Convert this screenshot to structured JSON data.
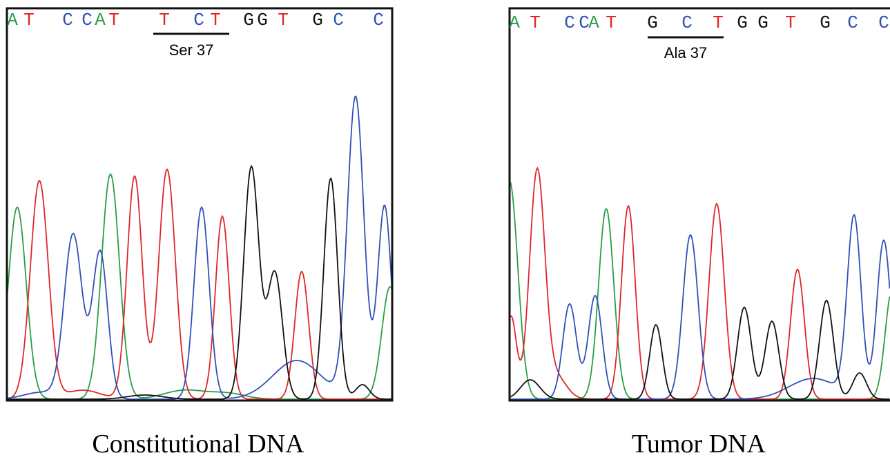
{
  "panels": [
    {
      "bases": [
        {
          "letter": "A",
          "color": "#2a9d45"
        },
        {
          "letter": "T",
          "color": "#e0262a"
        },
        {
          "letter": "C",
          "color": "#3050b8"
        },
        {
          "letter": "C",
          "color": "#3050b8"
        },
        {
          "letter": "A",
          "color": "#2a9d45"
        },
        {
          "letter": "T",
          "color": "#e0262a"
        },
        {
          "letter": "T",
          "color": "#e0262a"
        },
        {
          "letter": "C",
          "color": "#3050b8"
        },
        {
          "letter": "T",
          "color": "#e0262a"
        },
        {
          "letter": "G",
          "color": "#111111"
        },
        {
          "letter": "G",
          "color": "#111111"
        },
        {
          "letter": "T",
          "color": "#e0262a"
        },
        {
          "letter": "G",
          "color": "#111111"
        },
        {
          "letter": "C",
          "color": "#3050b8"
        },
        {
          "letter": "C",
          "color": "#3050b8"
        }
      ],
      "codon_label": "Ser 37",
      "caption": "Constitutional DNA"
    },
    {
      "bases": [
        {
          "letter": "A",
          "color": "#2a9d45"
        },
        {
          "letter": "T",
          "color": "#e0262a"
        },
        {
          "letter": "C",
          "color": "#3050b8"
        },
        {
          "letter": "C",
          "color": "#3050b8"
        },
        {
          "letter": "A",
          "color": "#2a9d45"
        },
        {
          "letter": "T",
          "color": "#e0262a"
        },
        {
          "letter": "G",
          "color": "#111111"
        },
        {
          "letter": "C",
          "color": "#3050b8"
        },
        {
          "letter": "T",
          "color": "#e0262a"
        },
        {
          "letter": "G",
          "color": "#111111"
        },
        {
          "letter": "G",
          "color": "#111111"
        },
        {
          "letter": "T",
          "color": "#e0262a"
        },
        {
          "letter": "G",
          "color": "#111111"
        },
        {
          "letter": "C",
          "color": "#3050b8"
        },
        {
          "letter": "C",
          "color": "#3050b8"
        }
      ],
      "codon_label": "Ala 37",
      "caption": "Tumor DNA"
    }
  ]
}
